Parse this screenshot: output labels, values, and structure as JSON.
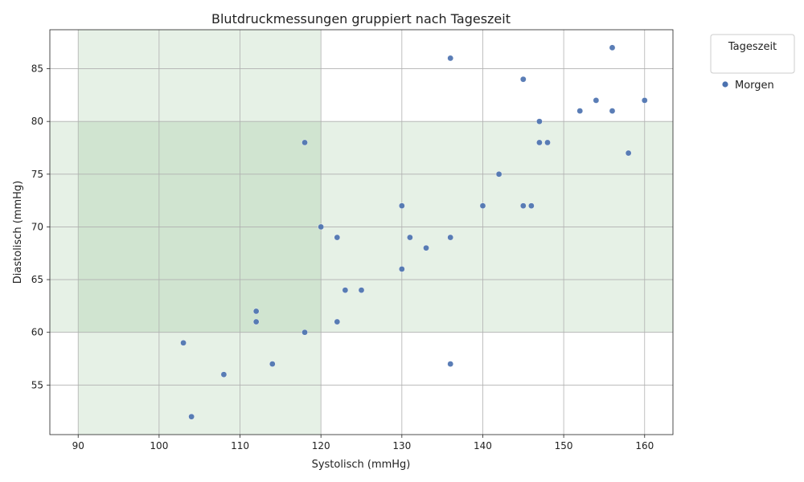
{
  "chart_data": {
    "type": "scatter",
    "title": "Blutdruckmessungen gruppiert nach Tageszeit",
    "xlabel": "Systolisch (mmHg)",
    "ylabel": "Diastolisch (mmHg)",
    "xlim": [
      86.5,
      163.5
    ],
    "ylim": [
      50.3,
      88.7
    ],
    "xticks": [
      90,
      100,
      110,
      120,
      130,
      140,
      150,
      160
    ],
    "yticks": [
      55,
      60,
      65,
      70,
      75,
      80,
      85
    ],
    "grid": true,
    "legend": {
      "title": "Tageszeit",
      "placement": "outside-top-right",
      "entries": [
        "Morgen"
      ]
    },
    "shaded_regions": [
      {
        "x": [
          90,
          120
        ],
        "y": [
          50.3,
          88.7
        ],
        "color": "#2e8b2e",
        "opacity": 0.12
      },
      {
        "x": [
          86.5,
          163.5
        ],
        "y": [
          60,
          80
        ],
        "color": "#2e8b2e",
        "opacity": 0.12
      }
    ],
    "series": [
      {
        "name": "Morgen",
        "color": "#4c72b0",
        "points": [
          [
            156,
            87
          ],
          [
            136,
            86
          ],
          [
            145,
            84
          ],
          [
            154,
            82
          ],
          [
            160,
            82
          ],
          [
            152,
            81
          ],
          [
            156,
            81
          ],
          [
            147,
            80
          ],
          [
            118,
            78
          ],
          [
            147,
            78
          ],
          [
            148,
            78
          ],
          [
            158,
            77
          ],
          [
            142,
            75
          ],
          [
            130,
            72
          ],
          [
            140,
            72
          ],
          [
            145,
            72
          ],
          [
            146,
            72
          ],
          [
            120,
            70
          ],
          [
            122,
            69
          ],
          [
            131,
            69
          ],
          [
            136,
            69
          ],
          [
            133,
            68
          ],
          [
            130,
            66
          ],
          [
            123,
            64
          ],
          [
            125,
            64
          ],
          [
            112,
            62
          ],
          [
            112,
            61
          ],
          [
            122,
            61
          ],
          [
            118,
            60
          ],
          [
            103,
            59
          ],
          [
            114,
            57
          ],
          [
            136,
            57
          ],
          [
            108,
            56
          ],
          [
            104,
            52
          ]
        ]
      }
    ]
  }
}
